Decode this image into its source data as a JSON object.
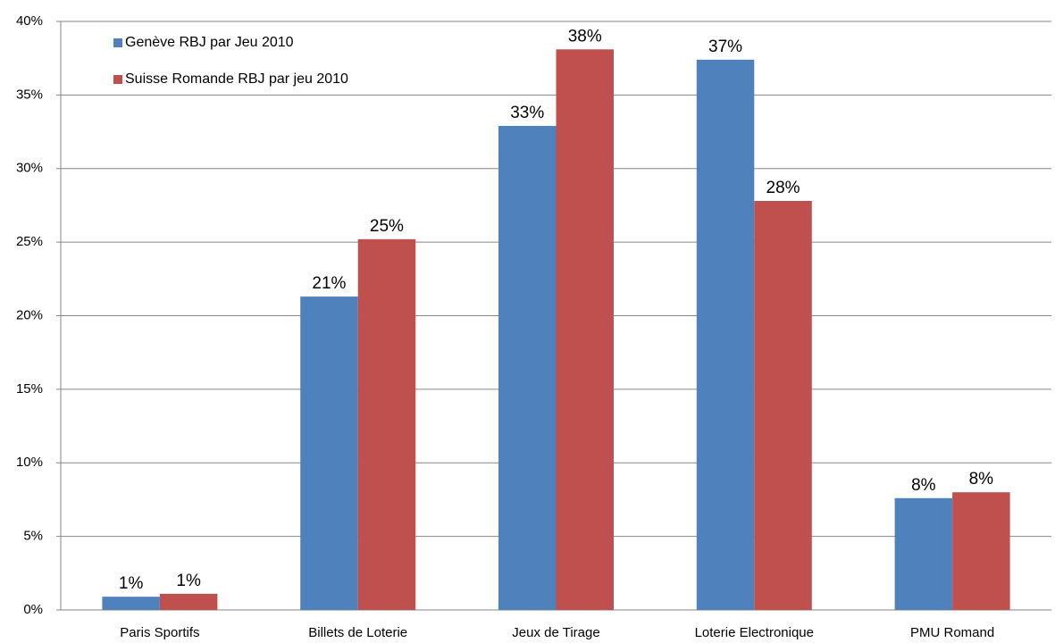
{
  "chart_data": {
    "type": "bar",
    "categories": [
      "Paris Sportifs",
      "Billets de Loterie",
      "Jeux de Tirage",
      "Loterie Electronique",
      "PMU Romand"
    ],
    "series": [
      {
        "name": "Genève RBJ par Jeu 2010",
        "color": "#4f81bd",
        "values": [
          0.9,
          21.3,
          32.9,
          37.4,
          7.6
        ],
        "value_labels": [
          "1%",
          "21%",
          "33%",
          "37%",
          "8%"
        ]
      },
      {
        "name": "Suisse Romande RBJ par jeu 2010",
        "color": "#c0504d",
        "values": [
          1.1,
          25.2,
          38.1,
          27.8,
          8.0
        ],
        "value_labels": [
          "1%",
          "25%",
          "38%",
          "28%",
          "8%"
        ]
      }
    ],
    "ylim": [
      0,
      40
    ],
    "yticks": [
      {
        "value": 0,
        "label": "0%"
      },
      {
        "value": 5,
        "label": "5%"
      },
      {
        "value": 10,
        "label": "10%"
      },
      {
        "value": 15,
        "label": "15%"
      },
      {
        "value": 20,
        "label": "20%"
      },
      {
        "value": 25,
        "label": "25%"
      },
      {
        "value": 30,
        "label": "30%"
      },
      {
        "value": 35,
        "label": "35%"
      },
      {
        "value": 40,
        "label": "40%"
      }
    ],
    "grid": true,
    "legend": "top-left"
  }
}
